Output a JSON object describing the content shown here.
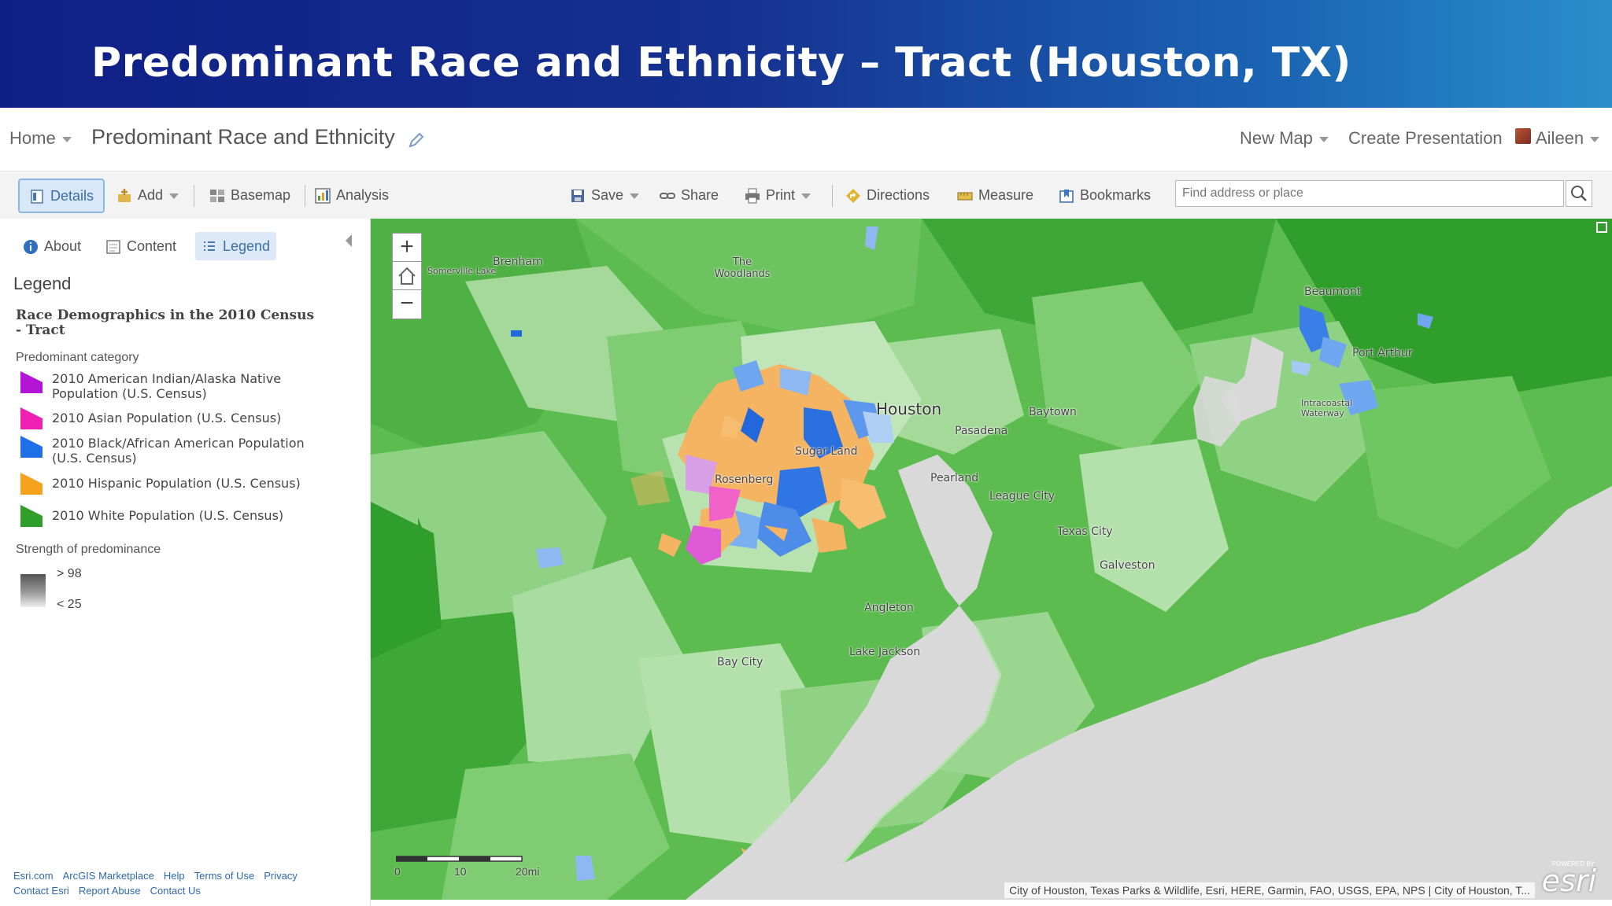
{
  "slide": {
    "title": "Predominant Race and Ethnicity – Tract (Houston, TX)"
  },
  "header": {
    "home_label": "Home",
    "map_title": "Predominant Race and Ethnicity",
    "new_map_label": "New Map",
    "create_presentation_label": "Create Presentation",
    "user_name": "Aileen"
  },
  "toolbar": {
    "details": "Details",
    "add": "Add",
    "basemap": "Basemap",
    "analysis": "Analysis",
    "save": "Save",
    "share": "Share",
    "print": "Print",
    "directions": "Directions",
    "measure": "Measure",
    "bookmarks": "Bookmarks",
    "search_placeholder": "Find address or place"
  },
  "panel": {
    "tabs": {
      "about": "About",
      "content": "Content",
      "legend": "Legend"
    },
    "legend_heading": "Legend",
    "layer_title": "Race Demographics in the 2010 Census - Tract",
    "category_heading": "Predominant category",
    "legend_items": [
      {
        "label": "2010 American Indian/Alaska Native Population (U.S. Census)",
        "color": "#b314d6"
      },
      {
        "label": "2010 Asian Population (U.S. Census)",
        "color": "#f01fb4"
      },
      {
        "label": "2010 Black/African American Population (U.S. Census)",
        "color": "#1f6fe8"
      },
      {
        "label": "2010 Hispanic Population (U.S. Census)",
        "color": "#f7a21f"
      },
      {
        "label": "2010 White Population (U.S. Census)",
        "color": "#2f9e2a"
      }
    ],
    "strength_heading": "Strength of predominance",
    "strength_high": "> 98",
    "strength_low": "< 25",
    "footer_links_row1": [
      "Esri.com",
      "ArcGIS Marketplace",
      "Help",
      "Terms of Use",
      "Privacy"
    ],
    "footer_links_row2": [
      "Contact Esri",
      "Report Abuse",
      "Contact Us"
    ]
  },
  "map": {
    "zoom_in": "+",
    "zoom_out": "−",
    "places": {
      "somerville_lake": "Somerville Lake",
      "brenham": "Brenham",
      "the_woodlands": "The Woodlands",
      "houston": "Houston",
      "baytown": "Baytown",
      "pasadena": "Pasadena",
      "sugar_land": "Sugar Land",
      "rosenberg": "Rosenberg",
      "pearland": "Pearland",
      "league_city": "League City",
      "texas_city": "Texas City",
      "galveston": "Galveston",
      "angleton": "Angleton",
      "lake_jackson": "Lake Jackson",
      "bay_city": "Bay City",
      "beaumont": "Beaumont",
      "port_arthur": "Port Arthur",
      "intracoastal_waterway": "Intracoastal Waterway"
    },
    "scale_labels": [
      "0",
      "10",
      "20mi"
    ],
    "attribution": "City of Houston, Texas Parks & Wildlife, Esri, HERE, Garmin, FAO, USGS, EPA, NPS | City of Houston, T...",
    "logo_powered": "POWERED BY",
    "logo_text": "esri"
  }
}
